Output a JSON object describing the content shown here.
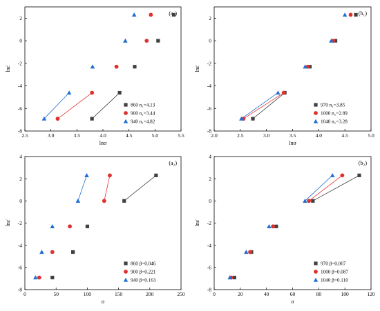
{
  "colors": {
    "s1": "#404040",
    "s2": "#e0302e",
    "s3": "#1f6fd1"
  },
  "chart_data": [
    {
      "id": "a1",
      "type": "scatter",
      "panel_label": "(a₁)",
      "xlabel": "lnσ",
      "ylabel": "lnε̇",
      "xlim": [
        2.5,
        5.5
      ],
      "ylim": [
        -8,
        3
      ],
      "xticks": [
        "2.5",
        "3.0",
        "3.5",
        "4.0",
        "4.5",
        "5.0",
        "5.5"
      ],
      "yticks": [
        "-8",
        "-6",
        "-4",
        "-2",
        "0",
        "2"
      ],
      "xtick_values": [
        2.5,
        3.0,
        3.5,
        4.0,
        4.5,
        5.0,
        5.5
      ],
      "ytick_values": [
        -8,
        -6,
        -4,
        -2,
        0,
        2
      ],
      "legend_position": "bottom-right",
      "fit_line_points": [
        0,
        1
      ],
      "series": [
        {
          "name": "860 n₁=4.13",
          "marker": "square",
          "color_key": "s1",
          "points": [
            [
              3.79,
              -6.91
            ],
            [
              4.32,
              -4.61
            ],
            [
              4.61,
              -2.3
            ],
            [
              5.06,
              0.0
            ],
            [
              5.36,
              2.3
            ]
          ]
        },
        {
          "name": "900 n₁=3.44",
          "marker": "circle",
          "color_key": "s2",
          "points": [
            [
              3.13,
              -6.91
            ],
            [
              3.79,
              -4.61
            ],
            [
              4.26,
              -2.3
            ],
            [
              4.84,
              0.0
            ],
            [
              4.92,
              2.3
            ]
          ]
        },
        {
          "name": "940 n₁=4.82",
          "marker": "triangle",
          "color_key": "s3",
          "points": [
            [
              2.87,
              -6.91
            ],
            [
              3.35,
              -4.61
            ],
            [
              3.8,
              -2.3
            ],
            [
              4.43,
              0.0
            ],
            [
              4.6,
              2.3
            ]
          ]
        }
      ]
    },
    {
      "id": "b1",
      "type": "scatter",
      "panel_label": "(b₁)",
      "xlabel": "lnσ",
      "ylabel": "lnε̇",
      "xlim": [
        2.0,
        5.0
      ],
      "ylim": [
        -8,
        3
      ],
      "xticks": [
        "2.0",
        "2.5",
        "3.0",
        "3.5",
        "4.0",
        "4.5",
        "5.0"
      ],
      "yticks": [
        "-8",
        "-6",
        "-4",
        "-2",
        "0",
        "2"
      ],
      "xtick_values": [
        2.0,
        2.5,
        3.0,
        3.5,
        4.0,
        4.5,
        5.0
      ],
      "ytick_values": [
        -8,
        -6,
        -4,
        -2,
        0,
        2
      ],
      "legend_position": "bottom-right",
      "fit_line_points": [
        0,
        1
      ],
      "series": [
        {
          "name": "970 n₁=3.85",
          "marker": "square",
          "color_key": "s1",
          "points": [
            [
              2.74,
              -6.91
            ],
            [
              3.35,
              -4.61
            ],
            [
              3.83,
              -2.3
            ],
            [
              4.32,
              0.0
            ],
            [
              4.71,
              2.3
            ]
          ]
        },
        {
          "name": "1000 n₁=2.89",
          "marker": "circle",
          "color_key": "s2",
          "points": [
            [
              2.56,
              -6.91
            ],
            [
              3.33,
              -4.61
            ],
            [
              3.79,
              -2.3
            ],
            [
              4.28,
              0.0
            ],
            [
              4.61,
              2.3
            ]
          ]
        },
        {
          "name": "1040 n₁=3.28",
          "marker": "triangle",
          "color_key": "s3",
          "points": [
            [
              2.52,
              -6.91
            ],
            [
              3.22,
              -4.61
            ],
            [
              3.74,
              -2.3
            ],
            [
              4.24,
              0.0
            ],
            [
              4.5,
              2.3
            ]
          ]
        }
      ]
    },
    {
      "id": "a2",
      "type": "scatter",
      "panel_label": "(a₂)",
      "xlabel": "σ",
      "ylabel": "lnε̇",
      "xlim": [
        0,
        250
      ],
      "ylim": [
        -8,
        4
      ],
      "xticks": [
        "0",
        "50",
        "100",
        "150",
        "200",
        "250"
      ],
      "yticks": [
        "-8",
        "-6",
        "-4",
        "-2",
        "0",
        "2",
        "4"
      ],
      "xtick_values": [
        0,
        50,
        100,
        150,
        200,
        250
      ],
      "ytick_values": [
        -8,
        -6,
        -4,
        -2,
        0,
        2,
        4
      ],
      "legend_position": "bottom-right",
      "fit_line_points": [
        3,
        4
      ],
      "series": [
        {
          "name": "860 β=0.046",
          "marker": "square",
          "color_key": "s1",
          "points": [
            [
              44,
              -6.91
            ],
            [
              77,
              -4.61
            ],
            [
              100,
              -2.3
            ],
            [
              159,
              0.0
            ],
            [
              210,
              2.3
            ]
          ]
        },
        {
          "name": "900 β=0.221",
          "marker": "circle",
          "color_key": "s2",
          "points": [
            [
              23,
              -6.91
            ],
            [
              44,
              -4.61
            ],
            [
              72,
              -2.3
            ],
            [
              127,
              0.0
            ],
            [
              136,
              2.3
            ]
          ]
        },
        {
          "name": "940 β=0.163",
          "marker": "triangle",
          "color_key": "s3",
          "points": [
            [
              17,
              -6.91
            ],
            [
              27,
              -4.61
            ],
            [
              44,
              -2.3
            ],
            [
              85,
              0.0
            ],
            [
              99,
              2.3
            ]
          ]
        }
      ]
    },
    {
      "id": "b2",
      "type": "scatter",
      "panel_label": "(b₂)",
      "xlabel": "σ",
      "ylabel": "lnε̇",
      "xlim": [
        0,
        120
      ],
      "ylim": [
        -8,
        4
      ],
      "xticks": [
        "0",
        "20",
        "40",
        "60",
        "80",
        "100",
        "120"
      ],
      "yticks": [
        "-8",
        "-6",
        "-4",
        "-2",
        "0",
        "2",
        "4"
      ],
      "xtick_values": [
        0,
        20,
        40,
        60,
        80,
        100,
        120
      ],
      "ytick_values": [
        -8,
        -6,
        -4,
        -2,
        0,
        2,
        4
      ],
      "legend_position": "bottom-right",
      "fit_line_points": [
        3,
        4
      ],
      "series": [
        {
          "name": "970 β=0.067",
          "marker": "square",
          "color_key": "s1",
          "points": [
            [
              15.5,
              -6.91
            ],
            [
              28.5,
              -4.61
            ],
            [
              47.5,
              -2.3
            ],
            [
              75.5,
              0.0
            ],
            [
              111,
              2.3
            ]
          ]
        },
        {
          "name": "1000 β=0.087",
          "marker": "circle",
          "color_key": "s2",
          "points": [
            [
              13,
              -6.91
            ],
            [
              27.5,
              -4.61
            ],
            [
              45,
              -2.3
            ],
            [
              72.5,
              0.0
            ],
            [
              98,
              2.3
            ]
          ]
        },
        {
          "name": "1040 β=0.110",
          "marker": "triangle",
          "color_key": "s3",
          "points": [
            [
              12,
              -6.91
            ],
            [
              24.5,
              -4.61
            ],
            [
              42,
              -2.3
            ],
            [
              69.5,
              0.0
            ],
            [
              90.5,
              2.3
            ]
          ]
        }
      ]
    }
  ]
}
